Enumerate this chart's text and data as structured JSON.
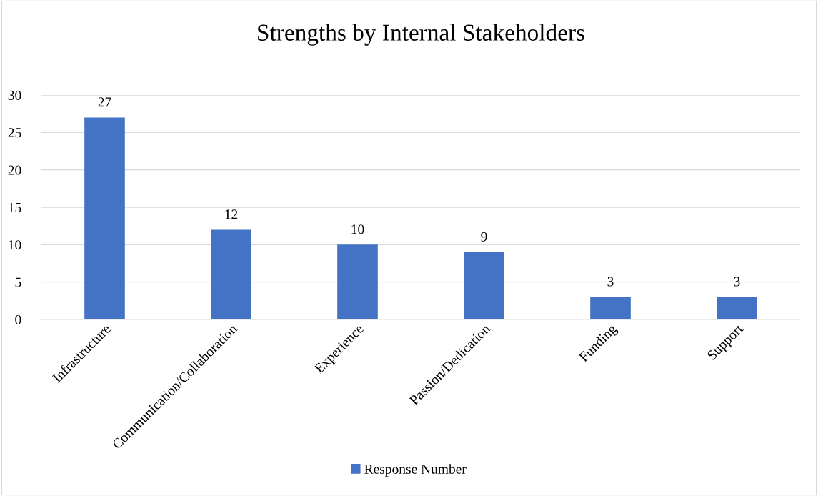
{
  "chart_data": {
    "type": "bar",
    "title": "Strengths by Internal Stakeholders",
    "categories": [
      "Infrastructure",
      "Communication/Collaboration",
      "Experience",
      "Passion/Dedication",
      "Funding",
      "Support"
    ],
    "series": [
      {
        "name": "Response Number",
        "color": "#4472c4",
        "values": [
          27,
          12,
          10,
          9,
          3,
          3
        ]
      }
    ],
    "ylim": [
      0,
      30
    ],
    "yticks": [
      0,
      5,
      10,
      15,
      20,
      25,
      30
    ],
    "grid": "y",
    "legend": "bottom",
    "data_labels": true
  }
}
